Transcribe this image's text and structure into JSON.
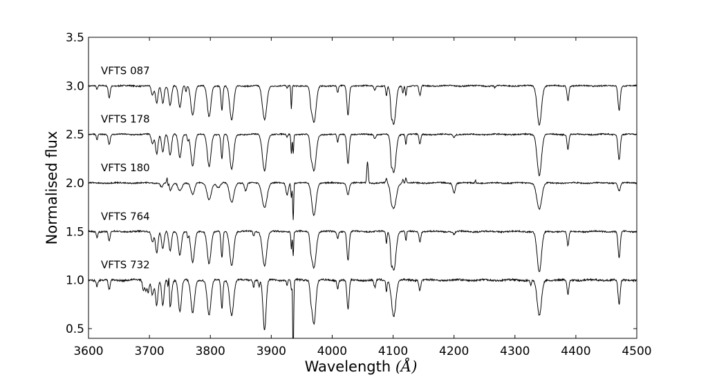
{
  "chart_data": {
    "type": "line",
    "title": "",
    "xlabel": "Wavelength",
    "xlabel_unit": "(Å)",
    "ylabel": "Normalised flux",
    "xlim": [
      3600,
      4500
    ],
    "ylim": [
      0.4,
      3.5
    ],
    "xticks": [
      "3600",
      "3700",
      "3800",
      "3900",
      "4000",
      "4100",
      "4200",
      "4300",
      "4400",
      "4500"
    ],
    "yticks": [
      "0.5",
      "1.0",
      "1.5",
      "2.0",
      "2.5",
      "3.0",
      "3.5"
    ],
    "grid": false,
    "legend": "none",
    "series": [
      {
        "name": "VFTS 087",
        "offset": 3.0,
        "noise": 0.006,
        "lines": [
          [
            3614,
            0.04,
            1.2
          ],
          [
            3634,
            0.12,
            1.5
          ],
          [
            3705,
            0.1,
            2
          ],
          [
            3712,
            0.18,
            2
          ],
          [
            3722,
            0.18,
            2
          ],
          [
            3734,
            0.2,
            2.2
          ],
          [
            3750,
            0.22,
            2.5
          ],
          [
            3760,
            0.06,
            1
          ],
          [
            3771,
            0.3,
            3
          ],
          [
            3798,
            0.32,
            3
          ],
          [
            3819,
            0.25,
            1.5
          ],
          [
            3835,
            0.35,
            3.2
          ],
          [
            3889,
            0.35,
            3.5
          ],
          [
            3926,
            0.03,
            1
          ],
          [
            3933,
            0.24,
            0.8
          ],
          [
            3970,
            0.38,
            3.5
          ],
          [
            3965,
            0.1,
            1.5
          ],
          [
            4009,
            0.07,
            1.3
          ],
          [
            4026,
            0.3,
            1.8
          ],
          [
            4070,
            0.04,
            1.5
          ],
          [
            4089,
            0.1,
            1
          ],
          [
            4097,
            0.12,
            1
          ],
          [
            4101,
            0.4,
            3.5
          ],
          [
            4116,
            0.07,
            1
          ],
          [
            4121,
            0.1,
            1
          ],
          [
            4144,
            0.1,
            1.5
          ],
          [
            4267,
            0.02,
            1
          ],
          [
            4340,
            0.4,
            3.5
          ],
          [
            4387,
            0.15,
            1.5
          ],
          [
            4471,
            0.25,
            1.8
          ]
        ],
        "emission": []
      },
      {
        "name": "VFTS 178",
        "offset": 2.5,
        "noise": 0.006,
        "lines": [
          [
            3614,
            0.06,
            1.2
          ],
          [
            3634,
            0.1,
            1.5
          ],
          [
            3705,
            0.1,
            2
          ],
          [
            3712,
            0.2,
            2
          ],
          [
            3722,
            0.18,
            2
          ],
          [
            3734,
            0.22,
            2.2
          ],
          [
            3750,
            0.24,
            2.5
          ],
          [
            3763,
            0.06,
            1
          ],
          [
            3771,
            0.32,
            3
          ],
          [
            3798,
            0.33,
            3
          ],
          [
            3819,
            0.25,
            1.5
          ],
          [
            3835,
            0.36,
            3.2
          ],
          [
            3889,
            0.37,
            3.5
          ],
          [
            3926,
            0.03,
            1
          ],
          [
            3933,
            0.2,
            0.8
          ],
          [
            3936,
            0.2,
            0.8
          ],
          [
            3965,
            0.1,
            1.5
          ],
          [
            3970,
            0.38,
            3.5
          ],
          [
            4009,
            0.08,
            1.3
          ],
          [
            4026,
            0.3,
            1.8
          ],
          [
            4070,
            0.04,
            1.5
          ],
          [
            4097,
            0.12,
            1
          ],
          [
            4101,
            0.4,
            3.5
          ],
          [
            4121,
            0.1,
            1
          ],
          [
            4144,
            0.1,
            1.5
          ],
          [
            4200,
            0.03,
            1.5
          ],
          [
            4340,
            0.42,
            3.5
          ],
          [
            4387,
            0.15,
            1.5
          ],
          [
            4471,
            0.26,
            1.8
          ]
        ],
        "emission": []
      },
      {
        "name": "VFTS 180",
        "offset": 2.0,
        "noise": 0.006,
        "lines": [
          [
            3720,
            0.04,
            2
          ],
          [
            3734,
            0.08,
            3
          ],
          [
            3750,
            0.08,
            3
          ],
          [
            3771,
            0.12,
            3
          ],
          [
            3798,
            0.17,
            3.5
          ],
          [
            3813,
            0.05,
            3
          ],
          [
            3835,
            0.2,
            3.5
          ],
          [
            3858,
            0.08,
            2
          ],
          [
            3889,
            0.25,
            4
          ],
          [
            3926,
            0.12,
            2
          ],
          [
            3933,
            0.15,
            0.8
          ],
          [
            3936,
            0.38,
            0.8
          ],
          [
            3970,
            0.33,
            3.5
          ],
          [
            4026,
            0.12,
            2
          ],
          [
            4097,
            0.05,
            1.5
          ],
          [
            4101,
            0.26,
            4
          ],
          [
            4200,
            0.1,
            2
          ],
          [
            4340,
            0.27,
            4
          ],
          [
            4471,
            0.08,
            2
          ]
        ],
        "emission": [
          [
            3729,
            0.07,
            0.8
          ],
          [
            3732,
            0.05,
            0.8
          ],
          [
            4058,
            0.22,
            1.2
          ],
          [
            4089,
            0.05,
            1
          ],
          [
            4116,
            0.04,
            1
          ],
          [
            4121,
            0.05,
            1
          ],
          [
            4235,
            0.03,
            0.8
          ]
        ]
      },
      {
        "name": "VFTS 764",
        "offset": 1.5,
        "noise": 0.007,
        "lines": [
          [
            3614,
            0.06,
            1.2
          ],
          [
            3634,
            0.1,
            1.5
          ],
          [
            3705,
            0.1,
            2
          ],
          [
            3712,
            0.22,
            2
          ],
          [
            3722,
            0.18,
            2
          ],
          [
            3734,
            0.2,
            2.2
          ],
          [
            3750,
            0.24,
            2.5
          ],
          [
            3763,
            0.06,
            1
          ],
          [
            3771,
            0.32,
            3
          ],
          [
            3798,
            0.33,
            3
          ],
          [
            3819,
            0.27,
            1.5
          ],
          [
            3835,
            0.35,
            3.2
          ],
          [
            3871,
            0.05,
            1
          ],
          [
            3889,
            0.35,
            3.5
          ],
          [
            3933,
            0.18,
            0.8
          ],
          [
            3936,
            0.25,
            0.8
          ],
          [
            3965,
            0.1,
            1.5
          ],
          [
            3970,
            0.37,
            3.5
          ],
          [
            4009,
            0.07,
            1.3
          ],
          [
            4026,
            0.3,
            1.8
          ],
          [
            4089,
            0.12,
            1
          ],
          [
            4097,
            0.14,
            1
          ],
          [
            4101,
            0.4,
            3.5
          ],
          [
            4121,
            0.1,
            1
          ],
          [
            4144,
            0.1,
            1.5
          ],
          [
            4200,
            0.03,
            1.5
          ],
          [
            4340,
            0.42,
            3.5
          ],
          [
            4387,
            0.15,
            1.5
          ],
          [
            4471,
            0.27,
            1.8
          ]
        ],
        "emission": []
      },
      {
        "name": "VFTS 732",
        "offset": 1.0,
        "noise": 0.009,
        "lines": [
          [
            3614,
            0.06,
            1.2
          ],
          [
            3634,
            0.1,
            1.5
          ],
          [
            3690,
            0.1,
            1.5
          ],
          [
            3694,
            0.1,
            1.5
          ],
          [
            3698,
            0.12,
            1.5
          ],
          [
            3705,
            0.15,
            2
          ],
          [
            3712,
            0.26,
            2
          ],
          [
            3722,
            0.26,
            2
          ],
          [
            3734,
            0.28,
            2.2
          ],
          [
            3750,
            0.32,
            2.5
          ],
          [
            3771,
            0.34,
            3
          ],
          [
            3798,
            0.36,
            3
          ],
          [
            3819,
            0.3,
            1.5
          ],
          [
            3835,
            0.36,
            3.2
          ],
          [
            3871,
            0.08,
            1
          ],
          [
            3880,
            0.06,
            1
          ],
          [
            3889,
            0.52,
            2.5
          ],
          [
            3926,
            0.05,
            1
          ],
          [
            3933,
            0.1,
            0.8
          ],
          [
            3936,
            0.8,
            0.8
          ],
          [
            3965,
            0.12,
            1.5
          ],
          [
            3970,
            0.45,
            3
          ],
          [
            4009,
            0.08,
            1.3
          ],
          [
            4026,
            0.3,
            1.8
          ],
          [
            4070,
            0.08,
            1.5
          ],
          [
            4089,
            0.12,
            1
          ],
          [
            4101,
            0.37,
            3.5
          ],
          [
            4144,
            0.1,
            1.5
          ],
          [
            4326,
            0.06,
            1
          ],
          [
            4340,
            0.37,
            3.5
          ],
          [
            4387,
            0.15,
            1.5
          ],
          [
            4471,
            0.25,
            1.8
          ]
        ],
        "emission": [
          [
            3732,
            0.2,
            0.7
          ]
        ]
      }
    ]
  }
}
